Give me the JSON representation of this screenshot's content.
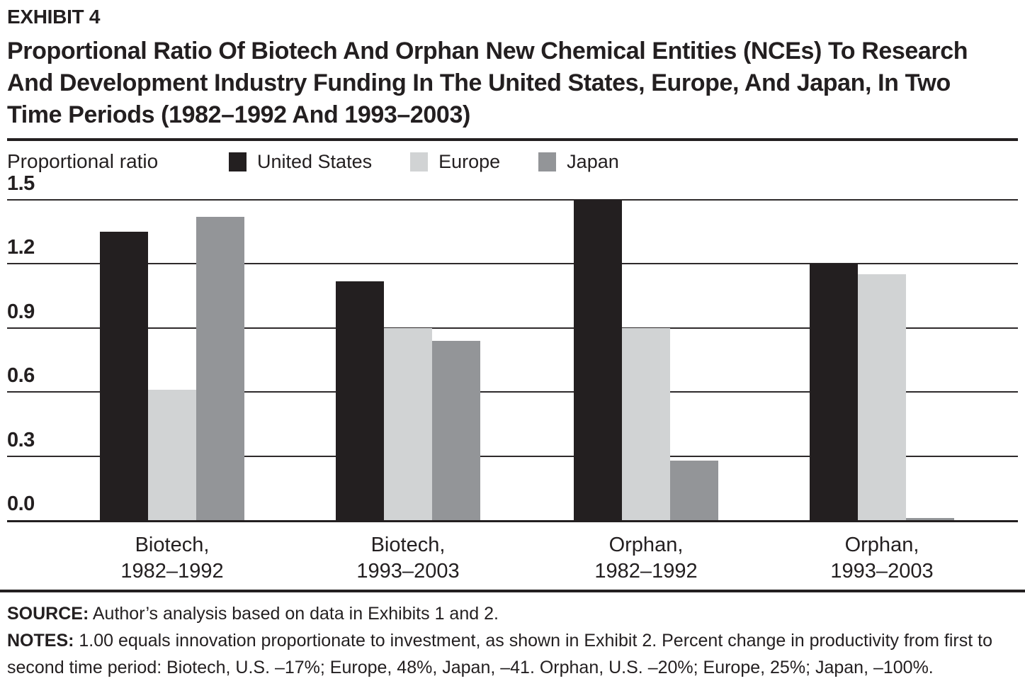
{
  "header": {
    "exhibit_label": "EXHIBIT 4",
    "title": "Proportional Ratio Of Biotech And Orphan New Chemical Entities (NCEs) To Research And Development Industry Funding In The United States, Europe, And Japan, In Two Time Periods (1982–1992 And 1993–2003)"
  },
  "legend": [
    {
      "label": "United States",
      "color": "#231f20"
    },
    {
      "label": "Europe",
      "color": "#d1d3d4"
    },
    {
      "label": "Japan",
      "color": "#939598"
    }
  ],
  "chart_data": {
    "type": "bar",
    "title": "Proportional Ratio Of Biotech And Orphan New Chemical Entities (NCEs) To Research And Development Industry Funding In The United States, Europe, And Japan, In Two Time Periods (1982–1992 And 1993–2003)",
    "ylabel": "Proportional ratio",
    "ylim": [
      0,
      1.5
    ],
    "yticks": [
      "0.0",
      "0.3",
      "0.6",
      "0.9",
      "1.2",
      "1.5"
    ],
    "grid": true,
    "legend_position": "top",
    "categories": [
      [
        "Biotech,",
        "1982–1992"
      ],
      [
        "Biotech,",
        "1993–2003"
      ],
      [
        "Orphan,",
        "1982–1992"
      ],
      [
        "Orphan,",
        "1993–2003"
      ]
    ],
    "series": [
      {
        "name": "United States",
        "color": "#231f20",
        "values": [
          1.35,
          1.12,
          1.5,
          1.2
        ]
      },
      {
        "name": "Europe",
        "color": "#d1d3d4",
        "values": [
          0.61,
          0.9,
          0.9,
          1.15
        ]
      },
      {
        "name": "Japan",
        "color": "#939598",
        "values": [
          1.42,
          0.84,
          0.28,
          0.01
        ]
      }
    ]
  },
  "footer": {
    "source_label": "SOURCE:",
    "source_text": " Author’s analysis based on data in Exhibits 1 and 2.",
    "notes_label": "NOTES:",
    "notes_text": " 1.00 equals innovation proportionate to investment, as shown in Exhibit 2. Percent change in productivity from first to second time period: Biotech, U.S. –17%; Europe, 48%, Japan, –41. Orphan, U.S. –20%; Europe, 25%; Japan, –100%."
  }
}
